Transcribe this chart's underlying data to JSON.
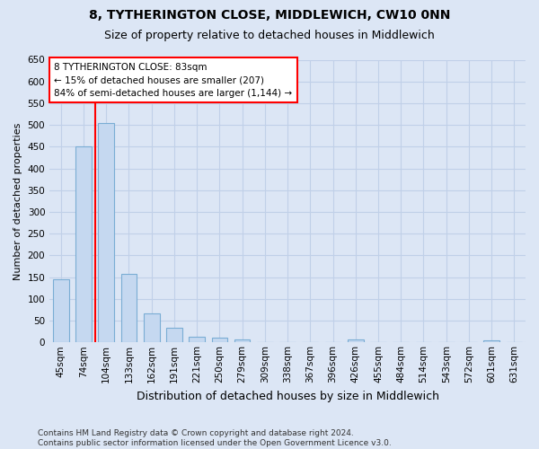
{
  "title": "8, TYTHERINGTON CLOSE, MIDDLEWICH, CW10 0NN",
  "subtitle": "Size of property relative to detached houses in Middlewich",
  "xlabel": "Distribution of detached houses by size in Middlewich",
  "ylabel": "Number of detached properties",
  "categories": [
    "45sqm",
    "74sqm",
    "104sqm",
    "133sqm",
    "162sqm",
    "191sqm",
    "221sqm",
    "250sqm",
    "279sqm",
    "309sqm",
    "338sqm",
    "367sqm",
    "396sqm",
    "426sqm",
    "455sqm",
    "484sqm",
    "514sqm",
    "543sqm",
    "572sqm",
    "601sqm",
    "631sqm"
  ],
  "values": [
    145,
    450,
    505,
    158,
    67,
    33,
    13,
    10,
    7,
    0,
    0,
    0,
    0,
    6,
    0,
    0,
    0,
    0,
    0,
    5,
    0
  ],
  "bar_color": "#c5d8f0",
  "bar_edge_color": "#7aadd4",
  "bar_width": 0.7,
  "vline_x": 1.5,
  "vline_color": "red",
  "annotation_line1": "8 TYTHERINGTON CLOSE: 83sqm",
  "annotation_line2": "← 15% of detached houses are smaller (207)",
  "annotation_line3": "84% of semi-detached houses are larger (1,144) →",
  "annotation_box_color": "white",
  "annotation_box_edge_color": "red",
  "ylim": [
    0,
    650
  ],
  "yticks": [
    0,
    50,
    100,
    150,
    200,
    250,
    300,
    350,
    400,
    450,
    500,
    550,
    600,
    650
  ],
  "footnote1": "Contains HM Land Registry data © Crown copyright and database right 2024.",
  "footnote2": "Contains public sector information licensed under the Open Government Licence v3.0.",
  "background_color": "#dce6f5",
  "plot_bg_color": "#dce6f5",
  "grid_color": "#c0d0e8",
  "title_fontsize": 10,
  "subtitle_fontsize": 9,
  "ylabel_fontsize": 8,
  "xlabel_fontsize": 9,
  "tick_fontsize": 7.5,
  "footnote_fontsize": 6.5
}
